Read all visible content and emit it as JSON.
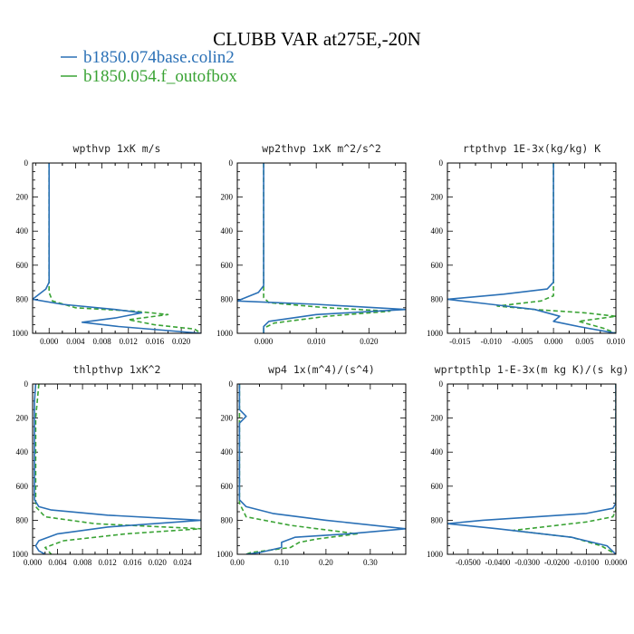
{
  "figure": {
    "title": "CLUBB VAR at275E,-20N",
    "legend": [
      {
        "label": "b1850.074base.colin2",
        "color": "#2a70b6",
        "dash": "solid"
      },
      {
        "label": "b1850.054.f_outofbox",
        "color": "#3aa335",
        "dash": "dashed"
      }
    ]
  },
  "chart_data": [
    {
      "type": "line",
      "title": "wpthvp  1xK m/s",
      "xlim": [
        -0.0025,
        0.023
      ],
      "xticks": [
        0.0,
        0.004,
        0.008,
        0.012,
        0.016,
        0.02
      ],
      "xtick_labels": [
        "0.000",
        "0.004",
        "0.008",
        "0.012",
        "0.016",
        "0.020"
      ],
      "ylim": [
        1000,
        0
      ],
      "yticks": [
        0,
        200,
        400,
        600,
        800,
        1000
      ],
      "series": [
        {
          "name": "b1850.074base.colin2",
          "x": [
            0.0,
            0.0,
            0.0,
            -0.0005,
            -0.0025,
            0.002,
            0.01,
            0.014,
            0.01,
            0.005,
            0.0105,
            0.023
          ],
          "y": [
            0,
            500,
            700,
            740,
            800,
            830,
            860,
            880,
            910,
            935,
            960,
            1000
          ]
        },
        {
          "name": "b1850.054.f_outofbox",
          "x": [
            0.0,
            0.0,
            0.0,
            0.0005,
            0.004,
            0.013,
            0.018,
            0.012,
            0.016,
            0.022,
            0.023
          ],
          "y": [
            0,
            500,
            760,
            810,
            850,
            870,
            890,
            920,
            950,
            975,
            1000
          ]
        }
      ]
    },
    {
      "type": "line",
      "title": "wp2thvp  1xK m^2/s^2",
      "xlim": [
        -0.005,
        0.027
      ],
      "xticks": [
        0.0,
        0.01,
        0.02
      ],
      "xtick_labels": [
        "0.000",
        "0.010",
        "0.020"
      ],
      "ylim": [
        1000,
        0
      ],
      "yticks": [
        0,
        200,
        400,
        600,
        800,
        1000
      ],
      "series": [
        {
          "name": "b1850.074base.colin2",
          "x": [
            0.0,
            0.0,
            0.0,
            -0.001,
            -0.005,
            0.01,
            0.027,
            0.01,
            0.001,
            0.0,
            0.0
          ],
          "y": [
            0,
            500,
            720,
            760,
            810,
            830,
            860,
            890,
            930,
            960,
            1000
          ]
        },
        {
          "name": "b1850.054.f_outofbox",
          "x": [
            0.0,
            0.0,
            0.0,
            0.001,
            0.012,
            0.024,
            0.012,
            0.002,
            0.0,
            0.0
          ],
          "y": [
            0,
            500,
            790,
            820,
            850,
            870,
            900,
            940,
            970,
            1000
          ]
        }
      ]
    },
    {
      "type": "line",
      "title": "rtpthvp  1E-3x(kg/kg) K",
      "xlim": [
        -0.017,
        0.01
      ],
      "xticks": [
        -0.015,
        -0.01,
        -0.005,
        0.0,
        0.005,
        0.01
      ],
      "xtick_labels": [
        "-0.015",
        "-0.010",
        "-0.005",
        "0.000",
        "0.005",
        "0.010"
      ],
      "ylim": [
        1000,
        0
      ],
      "yticks": [
        0,
        200,
        400,
        600,
        800,
        1000
      ],
      "series": [
        {
          "name": "b1850.074base.colin2",
          "x": [
            0.0,
            0.0,
            0.0,
            -0.001,
            -0.008,
            -0.017,
            -0.01,
            -0.003,
            0.001,
            0.0,
            0.004,
            0.01
          ],
          "y": [
            0,
            500,
            700,
            740,
            770,
            800,
            830,
            860,
            900,
            930,
            960,
            1000
          ]
        },
        {
          "name": "b1850.054.f_outofbox",
          "x": [
            0.0,
            0.0,
            0.0,
            -0.002,
            -0.009,
            -0.003,
            0.005,
            0.01,
            0.004,
            0.008,
            0.01
          ],
          "y": [
            0,
            500,
            780,
            810,
            840,
            860,
            880,
            900,
            930,
            970,
            1000
          ]
        }
      ]
    },
    {
      "type": "line",
      "title": "thlpthvp  1xK^2",
      "xlim": [
        0.0,
        0.027
      ],
      "xticks": [
        0.0,
        0.004,
        0.008,
        0.012,
        0.016,
        0.02,
        0.024
      ],
      "xtick_labels": [
        "0.000",
        "0.004",
        "0.008",
        "0.012",
        "0.016",
        "0.020",
        "0.024"
      ],
      "ylim": [
        1000,
        0
      ],
      "yticks": [
        0,
        200,
        400,
        600,
        800,
        1000
      ],
      "series": [
        {
          "name": "b1850.074base.colin2",
          "x": [
            0.0005,
            0.0003,
            0.0003,
            0.001,
            0.003,
            0.012,
            0.027,
            0.012,
            0.004,
            0.001,
            0.0005,
            0.001,
            0.002
          ],
          "y": [
            0,
            100,
            680,
            720,
            740,
            770,
            800,
            840,
            880,
            920,
            950,
            980,
            1000
          ]
        },
        {
          "name": "b1850.054.f_outofbox",
          "x": [
            0.001,
            0.0005,
            0.0005,
            0.002,
            0.01,
            0.027,
            0.015,
            0.005,
            0.002,
            0.003
          ],
          "y": [
            0,
            200,
            720,
            780,
            820,
            850,
            880,
            920,
            960,
            1000
          ]
        }
      ]
    },
    {
      "type": "line",
      "title": "wp4  1x(m^4)/(s^4)",
      "xlim": [
        0.0,
        0.38
      ],
      "xticks": [
        0.0,
        0.1,
        0.2,
        0.3
      ],
      "xtick_labels": [
        "0.00",
        "0.10",
        "0.20",
        "0.30"
      ],
      "ylim": [
        1000,
        0
      ],
      "yticks": [
        0,
        200,
        400,
        600,
        800,
        1000
      ],
      "series": [
        {
          "name": "b1850.074base.colin2",
          "x": [
            0.005,
            0.005,
            0.02,
            0.005,
            0.005,
            0.02,
            0.08,
            0.2,
            0.38,
            0.25,
            0.13,
            0.1,
            0.1,
            0.05,
            0.02
          ],
          "y": [
            0,
            150,
            190,
            230,
            680,
            720,
            760,
            800,
            850,
            880,
            900,
            930,
            960,
            990,
            1000
          ]
        },
        {
          "name": "b1850.054.f_outofbox",
          "x": [
            0.005,
            0.005,
            0.005,
            0.02,
            0.12,
            0.27,
            0.18,
            0.14,
            0.12,
            0.03,
            0.02
          ],
          "y": [
            0,
            200,
            700,
            780,
            830,
            880,
            910,
            930,
            960,
            990,
            1000
          ]
        }
      ]
    },
    {
      "type": "line",
      "title": "wprtpthlp  1-E-3x(m kg K)/(s kg)",
      "xlim": [
        -0.057,
        0.0
      ],
      "xticks": [
        -0.05,
        -0.04,
        -0.03,
        -0.02,
        -0.01,
        0.0
      ],
      "xtick_labels": [
        "-0.0500",
        "-0.0400",
        "-0.0300",
        "-0.0200",
        "-0.0100",
        "0.0000"
      ],
      "ylim": [
        1000,
        0
      ],
      "yticks": [
        0,
        200,
        400,
        600,
        800,
        1000
      ],
      "series": [
        {
          "name": "b1850.074base.colin2",
          "x": [
            0.0,
            0.0,
            0.0,
            -0.001,
            -0.01,
            -0.045,
            -0.057,
            -0.04,
            -0.015,
            -0.003,
            0.0
          ],
          "y": [
            0,
            500,
            700,
            730,
            760,
            800,
            820,
            850,
            900,
            950,
            1000
          ]
        },
        {
          "name": "b1850.054.f_outofbox",
          "x": [
            0.0,
            0.0,
            0.0,
            -0.001,
            -0.01,
            -0.035,
            -0.015,
            -0.005,
            0.0
          ],
          "y": [
            0,
            500,
            740,
            780,
            810,
            860,
            900,
            950,
            1000
          ]
        }
      ]
    }
  ]
}
